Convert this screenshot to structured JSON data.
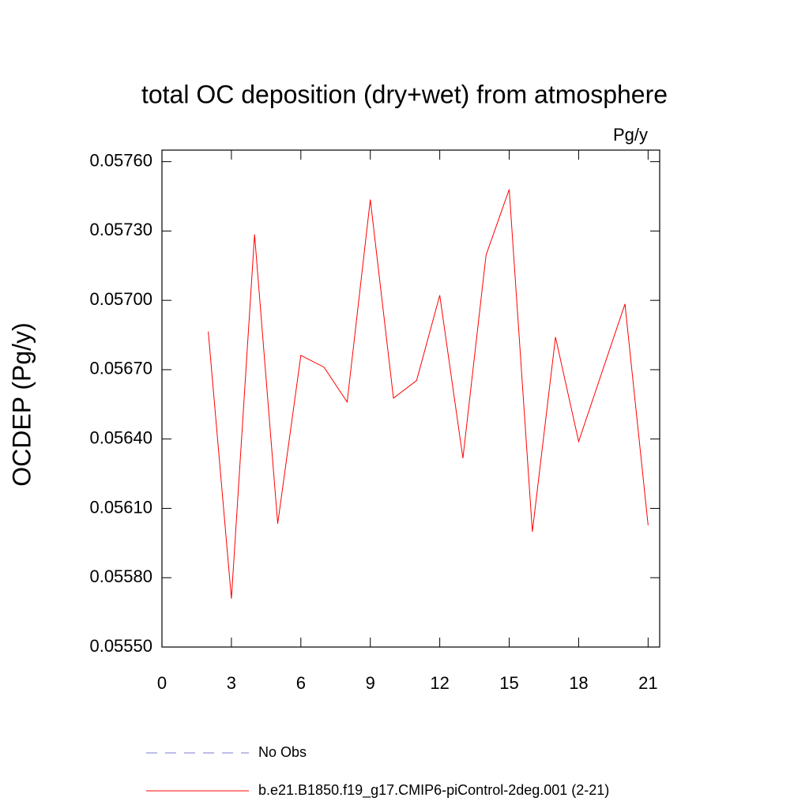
{
  "chart_data": {
    "type": "line",
    "title": "total OC deposition (dry+wet) from atmosphere",
    "units_label": "Pg/y",
    "y_label": "OCDEP  (Pg/y)",
    "x": [
      2,
      3,
      4,
      5,
      6,
      7,
      8,
      9,
      10,
      11,
      12,
      13,
      14,
      15,
      16,
      17,
      18,
      19,
      20,
      21
    ],
    "series": [
      {
        "name": "No Obs",
        "color": "#7b7bd0",
        "dashed": true,
        "values": [
          null,
          null,
          null,
          null,
          null,
          null,
          null,
          null,
          null,
          null,
          null,
          null,
          null,
          null,
          null,
          null,
          null,
          null,
          null,
          null
        ]
      },
      {
        "name": "b.e21.B1850.f19_g17.CMIP6-piControl-2deg.001 (2-21)",
        "color": "#ff0000",
        "dashed": false,
        "values": [
          0.056865,
          0.055709,
          0.057285,
          0.056034,
          0.056762,
          0.056711,
          0.05656,
          0.057436,
          0.056577,
          0.056653,
          0.057022,
          0.056317,
          0.057196,
          0.05748,
          0.055999,
          0.056841,
          0.056389,
          0.056687,
          0.056984,
          0.056027
        ]
      }
    ],
    "xlim": [
      0,
      21.5
    ],
    "ylim": [
      0.0555,
      0.05765
    ],
    "xticks": [
      0,
      3,
      6,
      9,
      12,
      15,
      18,
      21
    ],
    "yticks": [
      {
        "value": 0.0555,
        "label": "0.05550"
      },
      {
        "value": 0.0558,
        "label": "0.05580"
      },
      {
        "value": 0.0561,
        "label": "0.05610"
      },
      {
        "value": 0.0564,
        "label": "0.05640"
      },
      {
        "value": 0.0567,
        "label": "0.05670"
      },
      {
        "value": 0.057,
        "label": "0.05700"
      },
      {
        "value": 0.0573,
        "label": "0.05730"
      },
      {
        "value": 0.0576,
        "label": "0.05760"
      }
    ]
  }
}
